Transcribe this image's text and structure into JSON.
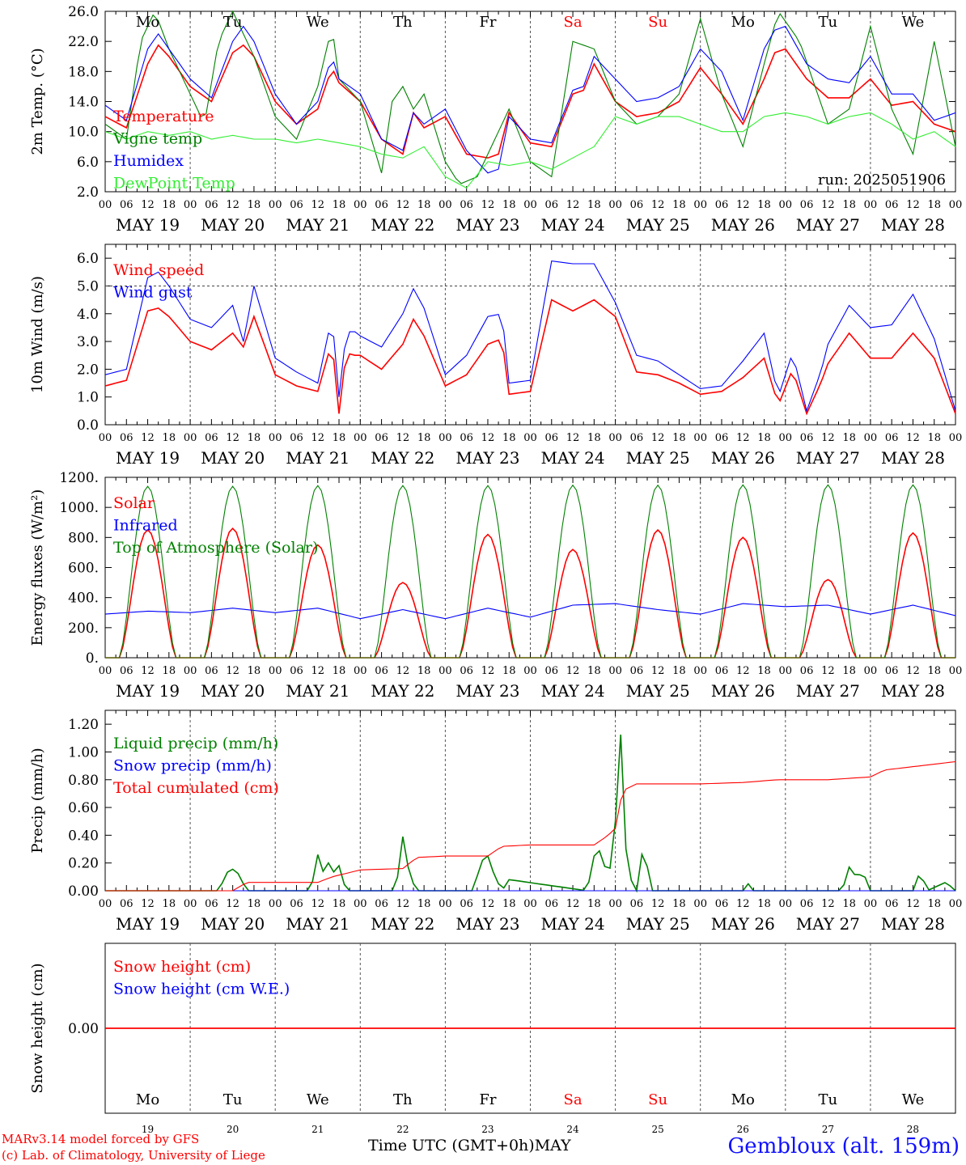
{
  "run_label": "run: 2025051906",
  "days": [
    "MAY 19",
    "MAY 20",
    "MAY 21",
    "MAY 22",
    "MAY 23",
    "MAY 24",
    "MAY 25",
    "MAY 26",
    "MAY 27",
    "MAY 28"
  ],
  "weekdays": [
    "Mo",
    "Tu",
    "We",
    "Th",
    "Fr",
    "Sa",
    "Su",
    "Mo",
    "Tu",
    "We"
  ],
  "weekday_colors": [
    "#000000",
    "#000000",
    "#000000",
    "#000000",
    "#000000",
    "#ff0000",
    "#ff0000",
    "#000000",
    "#000000",
    "#000000"
  ],
  "day_numbers": [
    "19",
    "20",
    "21",
    "22",
    "23",
    "24",
    "25",
    "26",
    "27",
    "28"
  ],
  "hour_ticks": [
    "00",
    "06",
    "12",
    "18"
  ],
  "footer": {
    "credit_line1": "MARv3.14 model forced by GFS",
    "credit_line2": "(c) Lab. of Climatology, University of Liege",
    "time_label": "Time UTC (GMT+0h)",
    "month": "MAY",
    "station": "Gembloux (alt. 159m)"
  },
  "chart_data": [
    {
      "type": "line",
      "ylabel": "2m Temp. (°C)",
      "ylim": [
        2,
        26
      ],
      "yticks": [
        "2.0",
        "6.0",
        "10.0",
        "14.0",
        "18.0",
        "22.0",
        "26.0"
      ],
      "x_unit": "hours since May 19 00 UTC",
      "series": [
        {
          "name": "Temperature",
          "color": "#ff0000",
          "x": [
            0,
            6,
            12,
            15,
            18,
            24,
            30,
            36,
            39,
            42,
            48,
            54,
            60,
            64,
            66,
            72,
            78,
            84,
            87,
            90,
            96,
            102,
            108,
            111,
            114,
            120,
            126,
            132,
            135,
            138,
            144,
            150,
            156,
            162,
            168,
            174,
            180,
            186,
            189,
            192,
            198,
            204,
            210,
            216,
            222,
            228,
            234,
            240
          ],
          "y": [
            12,
            10.5,
            19,
            21.5,
            20,
            16,
            14,
            20.5,
            21.5,
            20,
            14,
            11,
            13,
            18.5,
            16.5,
            14,
            9,
            7,
            12.5,
            10.5,
            12,
            7,
            6.5,
            7,
            12.5,
            8.5,
            8,
            15,
            15.5,
            19,
            14,
            12,
            12.5,
            14,
            18.5,
            15,
            11,
            17,
            20.5,
            21,
            17,
            14.5,
            14.5,
            17,
            13.5,
            14,
            11,
            10
          ]
        },
        {
          "name": "Vigne temp",
          "color": "#008000",
          "x": [
            0,
            6,
            10,
            14,
            18,
            24,
            28,
            32,
            36,
            42,
            48,
            54,
            60,
            64,
            66,
            72,
            78,
            81,
            84,
            87,
            90,
            96,
            100,
            105,
            108,
            114,
            120,
            126,
            132,
            138,
            144,
            150,
            156,
            162,
            168,
            174,
            180,
            186,
            190,
            196,
            204,
            210,
            216,
            222,
            228,
            234,
            240
          ],
          "y": [
            11,
            9,
            22,
            26,
            21,
            15,
            11,
            22,
            26,
            20,
            12,
            9,
            16,
            24,
            17,
            14,
            4.5,
            14,
            16,
            13,
            15,
            6,
            3,
            4,
            7,
            13,
            6,
            4,
            22,
            21,
            14,
            11,
            12,
            15,
            25,
            15,
            8,
            19,
            26,
            22,
            11,
            13,
            24,
            13,
            7,
            22,
            8
          ]
        },
        {
          "name": "Humidex",
          "color": "#0000ff",
          "x": [
            0,
            6,
            12,
            15,
            18,
            24,
            30,
            36,
            39,
            42,
            48,
            54,
            60,
            64,
            66,
            72,
            78,
            84,
            87,
            90,
            96,
            102,
            108,
            111,
            114,
            120,
            126,
            132,
            135,
            138,
            144,
            150,
            156,
            162,
            168,
            174,
            180,
            186,
            189,
            192,
            198,
            204,
            210,
            216,
            222,
            228,
            234,
            240
          ],
          "y": [
            13.5,
            11.5,
            21,
            23,
            21,
            17,
            14.5,
            22,
            24,
            22,
            15,
            11,
            14,
            20,
            17,
            15,
            9,
            7.5,
            12.5,
            11,
            13,
            7.5,
            4.5,
            5,
            12,
            9,
            8.5,
            15.5,
            16,
            20,
            17,
            14,
            14.5,
            16,
            21,
            18,
            11.5,
            21,
            23.5,
            24,
            19,
            17,
            16.5,
            20,
            15,
            15,
            11.5,
            12.5
          ]
        },
        {
          "name": "DewPoint Temp",
          "color": "#33ee33",
          "x": [
            0,
            6,
            12,
            18,
            24,
            30,
            36,
            42,
            48,
            54,
            60,
            66,
            72,
            78,
            84,
            90,
            96,
            102,
            108,
            114,
            120,
            126,
            132,
            138,
            144,
            150,
            156,
            162,
            168,
            174,
            180,
            186,
            192,
            198,
            204,
            210,
            216,
            222,
            228,
            234,
            240
          ],
          "y": [
            10,
            9,
            10,
            9.5,
            10,
            9,
            9.5,
            9,
            9,
            8.5,
            9,
            8.5,
            8,
            7,
            6.5,
            8,
            4,
            2.5,
            6,
            5.5,
            6,
            5,
            6.5,
            8,
            12,
            11,
            12,
            12,
            11,
            10,
            10,
            12,
            12.5,
            12,
            11,
            12,
            12.5,
            11,
            9,
            10,
            8
          ]
        }
      ],
      "legend": [
        "Temperature",
        "Vigne temp",
        "Humidex",
        "DewPoint Temp"
      ],
      "legend_placement": "top-left"
    },
    {
      "type": "line",
      "ylabel": "10m Wind (m/s)",
      "ylim": [
        0,
        6.5
      ],
      "yticks": [
        "0.0",
        "1.0",
        "2.0",
        "3.0",
        "4.0",
        "5.0",
        "6.0"
      ],
      "reference_line": 5.0,
      "series": [
        {
          "name": "Wind speed",
          "color": "#ff0000",
          "x": [
            0,
            6,
            12,
            15,
            18,
            24,
            30,
            36,
            39,
            42,
            48,
            54,
            60,
            64,
            66,
            68,
            70,
            72,
            78,
            84,
            87,
            90,
            96,
            102,
            108,
            112,
            114,
            120,
            126,
            132,
            138,
            144,
            150,
            156,
            162,
            168,
            174,
            180,
            186,
            190,
            194,
            198,
            202,
            204,
            210,
            216,
            222,
            228,
            234,
            240
          ],
          "y": [
            1.4,
            1.6,
            4.1,
            4.2,
            3.9,
            3,
            2.7,
            3.3,
            2.8,
            3.9,
            1.8,
            1.4,
            1.2,
            3,
            0.4,
            2.6,
            2.5,
            2.5,
            2,
            2.9,
            3.8,
            3.2,
            1.4,
            1.8,
            2.9,
            3.1,
            1.1,
            1.2,
            4.5,
            4.1,
            4.5,
            3.9,
            1.9,
            1.8,
            1.5,
            1.1,
            1.2,
            1.7,
            2.4,
            0.7,
            2,
            0.4,
            1.5,
            2.2,
            3.3,
            2.4,
            2.4,
            3.3,
            2.4,
            0.4
          ]
        },
        {
          "name": "Wind gust",
          "color": "#0000ff",
          "x": [
            0,
            6,
            12,
            15,
            18,
            24,
            30,
            36,
            39,
            42,
            48,
            54,
            60,
            64,
            66,
            68,
            70,
            72,
            78,
            84,
            87,
            90,
            96,
            102,
            108,
            112,
            114,
            120,
            126,
            132,
            138,
            144,
            150,
            156,
            162,
            168,
            174,
            180,
            186,
            190,
            194,
            198,
            202,
            204,
            210,
            216,
            222,
            228,
            234,
            240
          ],
          "y": [
            1.8,
            2,
            5.3,
            5.5,
            5,
            3.8,
            3.5,
            4.3,
            3,
            5,
            2.4,
            1.9,
            1.5,
            3.9,
            1,
            3.3,
            3.4,
            3.2,
            2.8,
            4,
            4.9,
            4.2,
            1.8,
            2.5,
            3.9,
            4,
            1.5,
            1.6,
            5.9,
            5.8,
            5.8,
            4.4,
            2.5,
            2.3,
            1.8,
            1.3,
            1.4,
            2.3,
            3.3,
            1,
            2.6,
            0.5,
            1.9,
            2.9,
            4.3,
            3.5,
            3.6,
            4.7,
            3.1,
            0.5
          ]
        }
      ],
      "legend": [
        "Wind speed",
        "Wind gust"
      ],
      "legend_placement": "top-left"
    },
    {
      "type": "line",
      "ylabel": "Energy fluxes (W/m²)",
      "ylim": [
        0,
        1200
      ],
      "yticks": [
        "0.",
        "200.",
        "400.",
        "600.",
        "800.",
        "1000.",
        "1200."
      ],
      "series": [
        {
          "name": "Solar",
          "color": "#ff0000",
          "peaks_x": [
            12,
            36,
            60,
            84,
            108,
            132,
            156,
            180,
            204,
            228
          ],
          "peaks_y": [
            850,
            860,
            750,
            500,
            820,
            720,
            850,
            800,
            520,
            830
          ]
        },
        {
          "name": "Infrared",
          "color": "#0000ff",
          "x": [
            0,
            12,
            24,
            36,
            48,
            60,
            72,
            84,
            96,
            108,
            120,
            132,
            144,
            156,
            168,
            180,
            192,
            204,
            216,
            228,
            240
          ],
          "y": [
            290,
            310,
            300,
            330,
            300,
            330,
            260,
            320,
            260,
            330,
            270,
            350,
            360,
            320,
            290,
            360,
            340,
            350,
            290,
            350,
            280
          ]
        },
        {
          "name": "Top of Atmosphere (Solar)",
          "color": "#008000",
          "peaks_x": [
            12,
            36,
            60,
            84,
            108,
            132,
            156,
            180,
            204,
            228
          ],
          "peaks_y": [
            1140,
            1140,
            1145,
            1145,
            1145,
            1148,
            1148,
            1150,
            1150,
            1150
          ]
        }
      ],
      "legend": [
        "Solar",
        "Infrared",
        "Top of Atmosphere (Solar)"
      ],
      "legend_placement": "top-left"
    },
    {
      "type": "line",
      "ylabel": "Precip (mm/h)",
      "ylim": [
        0,
        1.3
      ],
      "yticks": [
        "0.00",
        "0.20",
        "0.40",
        "0.60",
        "0.80",
        "1.00",
        "1.20"
      ],
      "series": [
        {
          "name": "Liquid precip (mm/h)",
          "color": "#008000",
          "x": [
            0,
            32,
            35,
            37,
            40,
            58,
            60,
            62,
            63,
            64,
            66,
            68,
            70,
            82,
            84,
            86,
            88,
            104,
            106,
            108,
            110,
            112,
            114,
            136,
            138,
            140,
            142,
            144,
            145,
            146,
            147,
            148,
            150,
            152,
            154,
            180,
            181,
            182,
            208,
            210,
            212,
            214,
            216,
            228,
            230,
            232,
            238,
            239
          ],
          "y": [
            0,
            0,
            0.16,
            0.15,
            0,
            0,
            0.26,
            0.1,
            0.2,
            0.12,
            0.18,
            0,
            0,
            0,
            0.39,
            0.1,
            0,
            0,
            0.21,
            0.25,
            0.1,
            0,
            0.08,
            0,
            0.25,
            0.3,
            0.05,
            0.5,
            1.25,
            1,
            0.3,
            0.1,
            0,
            0.35,
            0,
            0,
            0.1,
            0,
            0,
            0.17,
            0.1,
            0.13,
            0,
            0,
            0.14,
            0,
            0.07,
            0
          ]
        },
        {
          "name": "Snow precip (mm/h)",
          "color": "#0000ff",
          "x": [
            0,
            240
          ],
          "y": [
            0,
            0
          ]
        },
        {
          "name": "Total cumulated (cm)",
          "color": "#ff0000",
          "x": [
            0,
            36,
            40,
            60,
            64,
            72,
            84,
            88,
            96,
            108,
            112,
            120,
            132,
            138,
            142,
            144,
            146,
            150,
            168,
            180,
            190,
            204,
            216,
            220,
            240
          ],
          "y": [
            0,
            0,
            0.06,
            0.06,
            0.1,
            0.15,
            0.16,
            0.24,
            0.25,
            0.25,
            0.32,
            0.33,
            0.33,
            0.33,
            0.4,
            0.45,
            0.72,
            0.77,
            0.77,
            0.78,
            0.8,
            0.8,
            0.82,
            0.87,
            0.93
          ]
        }
      ],
      "legend": [
        "Liquid precip (mm/h)",
        "Snow precip (mm/h)",
        "Total cumulated (cm)"
      ],
      "legend_placement": "top-left"
    },
    {
      "type": "line",
      "ylabel": "Snow height (cm)",
      "yticks": [
        "0.00"
      ],
      "series": [
        {
          "name": "Snow height (cm)",
          "color": "#ff0000",
          "x": [
            0,
            240
          ],
          "y": [
            0,
            0
          ]
        },
        {
          "name": "Snow height (cm W.E.)",
          "color": "#0000ff",
          "x": [
            0,
            240
          ],
          "y": [
            0,
            0
          ]
        }
      ],
      "legend": [
        "Snow height (cm)",
        "Snow height (cm W.E.)"
      ],
      "legend_placement": "top-left"
    }
  ]
}
